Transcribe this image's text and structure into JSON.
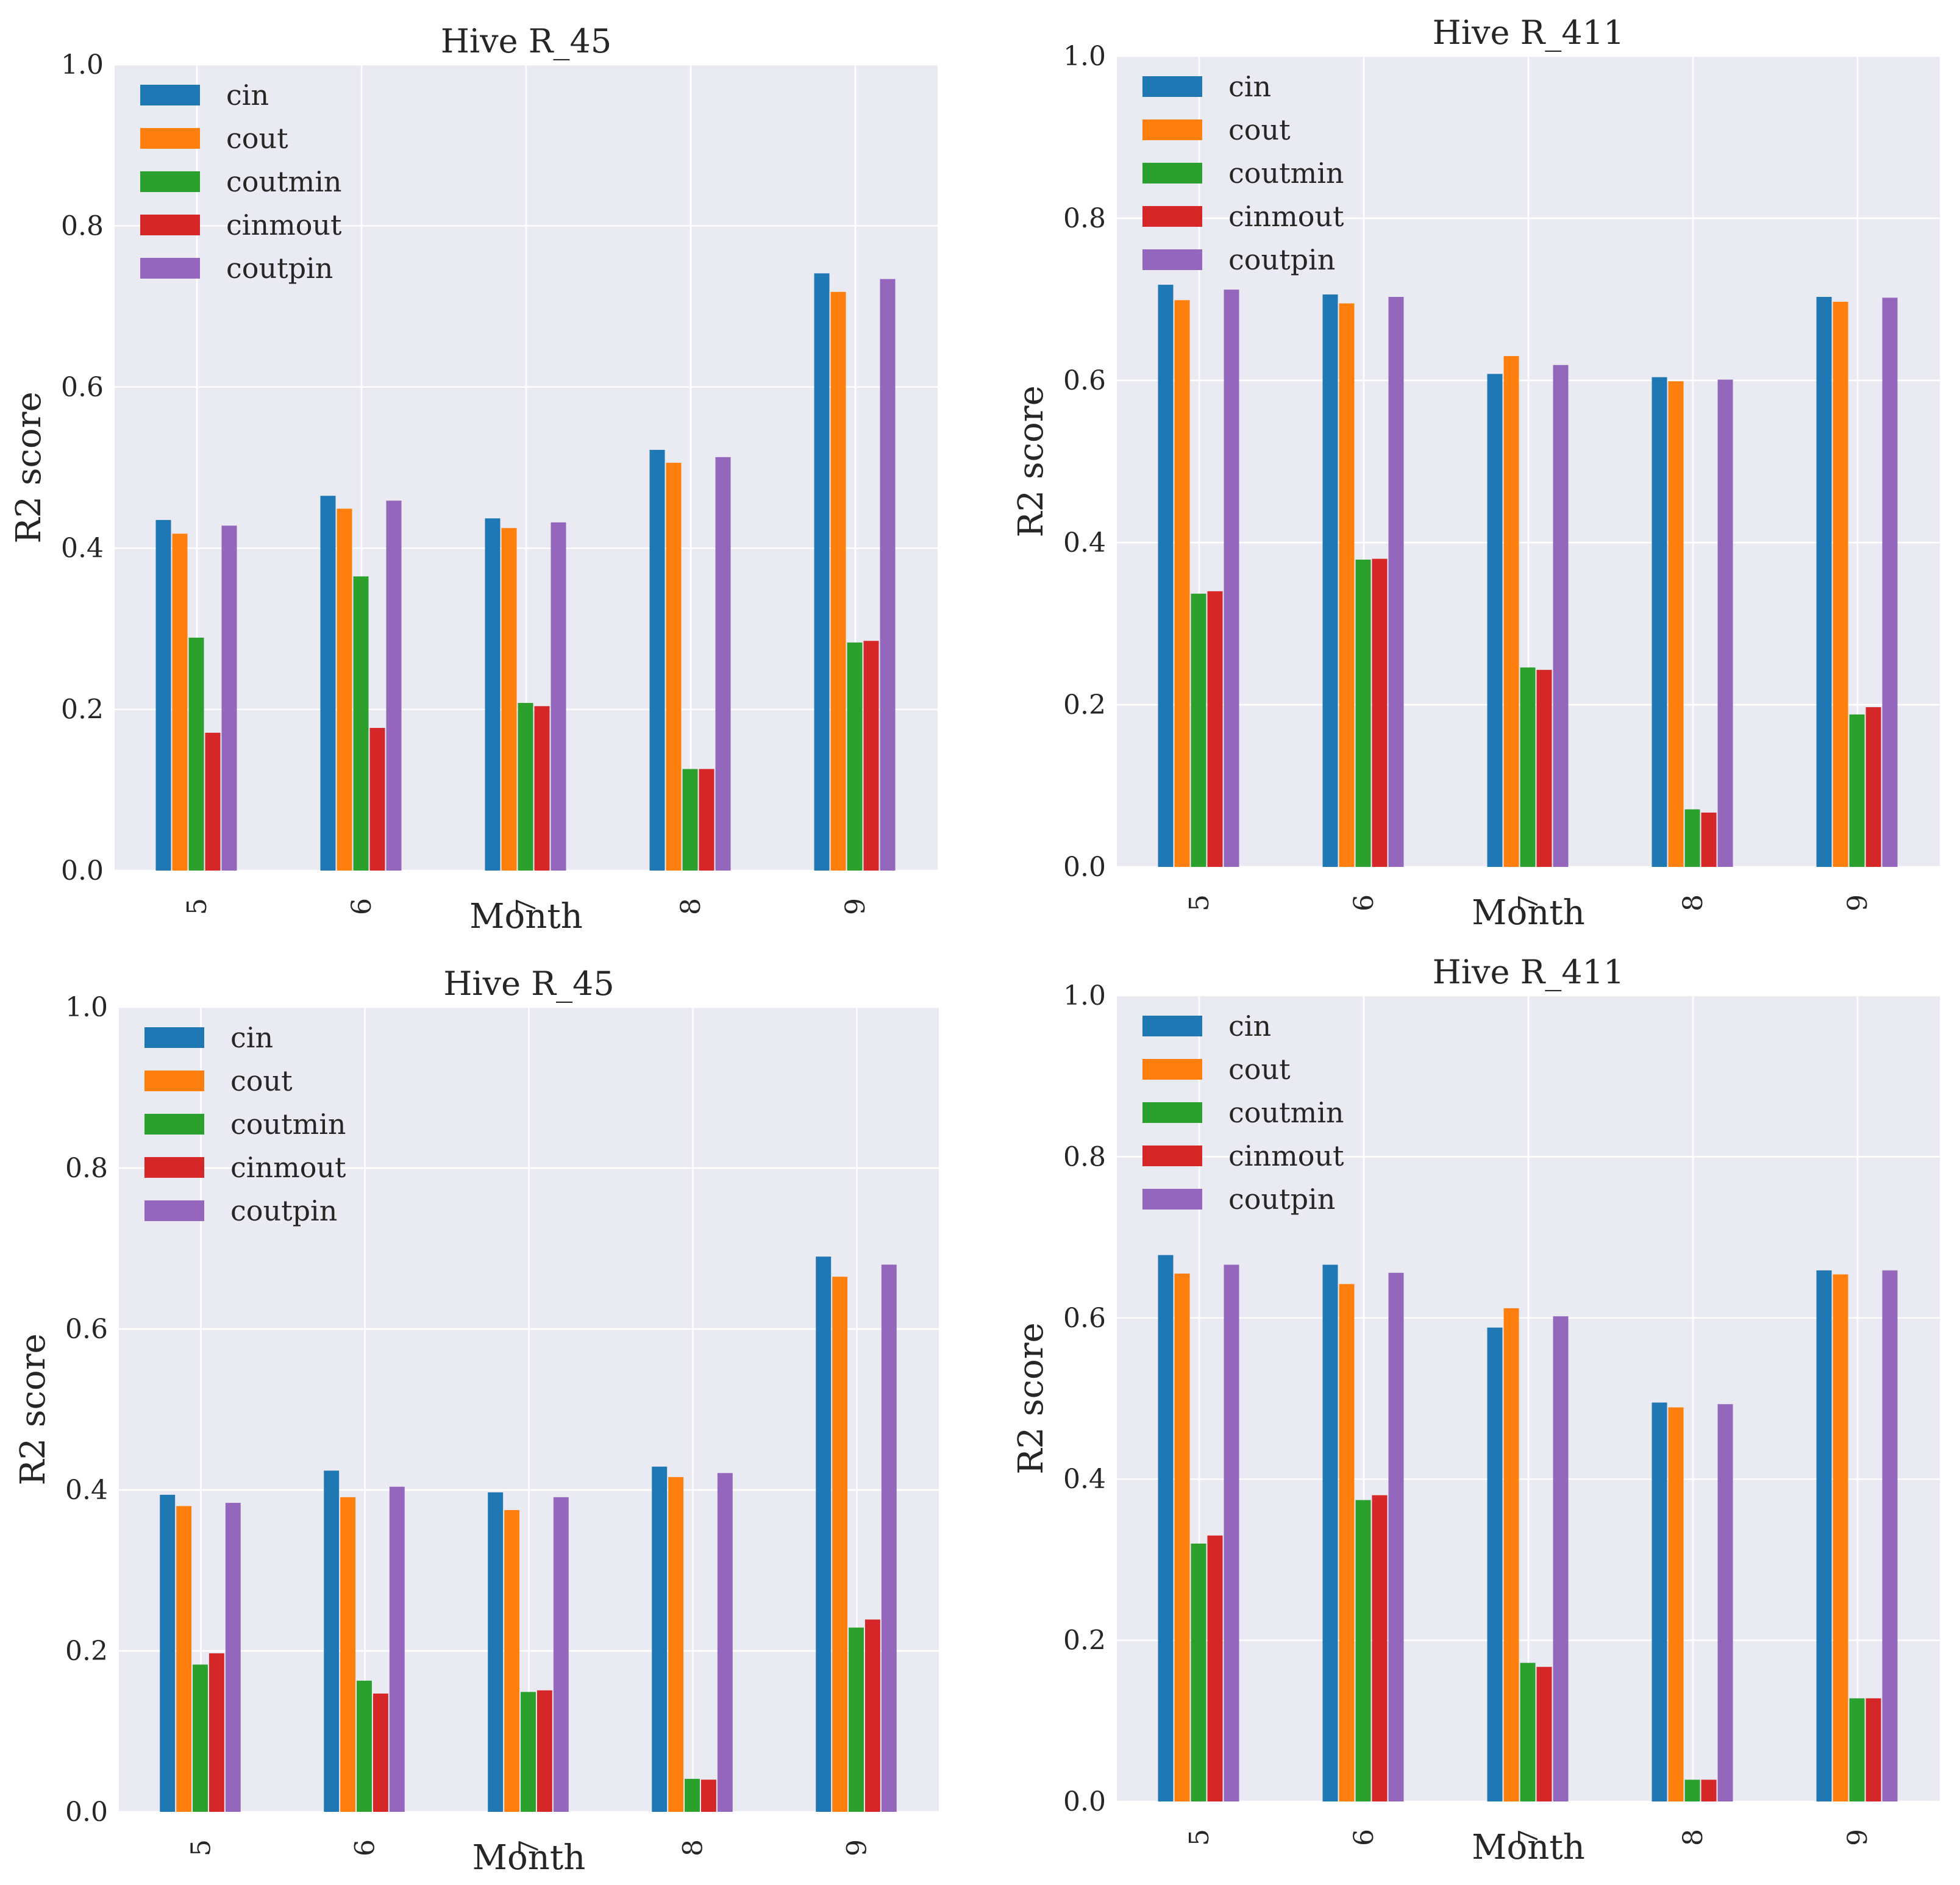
{
  "colors": {
    "cin": "#1f77b4",
    "cout": "#ff7f0e",
    "coutmin": "#2ca02c",
    "cinmout": "#d62728",
    "coutpin": "#9467bd",
    "plot_background": "#eaeaf2",
    "grid": "#ffffff"
  },
  "chart_data": [
    {
      "type": "bar",
      "title": "Hive R_45",
      "xlabel": "Month",
      "ylabel": "R2 score",
      "ylim": [
        0,
        1.0
      ],
      "yticks": [
        "0.0",
        "0.2",
        "0.4",
        "0.6",
        "0.8",
        "1.0"
      ],
      "grid": true,
      "legend_position": "upper-left",
      "categories": [
        "5",
        "6",
        "7",
        "8",
        "9"
      ],
      "series": [
        {
          "name": "cin",
          "values": [
            0.435,
            0.465,
            0.437,
            0.522,
            0.741
          ]
        },
        {
          "name": "cout",
          "values": [
            0.418,
            0.449,
            0.425,
            0.506,
            0.718
          ]
        },
        {
          "name": "coutmin",
          "values": [
            0.289,
            0.365,
            0.208,
            0.126,
            0.283
          ]
        },
        {
          "name": "cinmout",
          "values": [
            0.171,
            0.177,
            0.204,
            0.126,
            0.285
          ]
        },
        {
          "name": "coutpin",
          "values": [
            0.428,
            0.459,
            0.432,
            0.513,
            0.734
          ]
        }
      ]
    },
    {
      "type": "bar",
      "title": "Hive R_411",
      "xlabel": "Month",
      "ylabel": "R2 score",
      "ylim": [
        0,
        1.0
      ],
      "yticks": [
        "0.0",
        "0.2",
        "0.4",
        "0.6",
        "0.8",
        "1.0"
      ],
      "grid": true,
      "legend_position": "upper-left",
      "categories": [
        "5",
        "6",
        "7",
        "8",
        "9"
      ],
      "series": [
        {
          "name": "cin",
          "values": [
            0.718,
            0.706,
            0.608,
            0.604,
            0.703
          ]
        },
        {
          "name": "cout",
          "values": [
            0.699,
            0.695,
            0.63,
            0.599,
            0.697
          ]
        },
        {
          "name": "coutmin",
          "values": [
            0.337,
            0.379,
            0.246,
            0.071,
            0.188
          ]
        },
        {
          "name": "cinmout",
          "values": [
            0.34,
            0.38,
            0.243,
            0.067,
            0.197
          ]
        },
        {
          "name": "coutpin",
          "values": [
            0.712,
            0.703,
            0.619,
            0.601,
            0.702
          ]
        }
      ]
    },
    {
      "type": "bar",
      "title": "Hive R_45",
      "xlabel": "Month",
      "ylabel": "R2 score",
      "ylim": [
        0,
        1.0
      ],
      "yticks": [
        "0.0",
        "0.2",
        "0.4",
        "0.6",
        "0.8",
        "1.0"
      ],
      "grid": true,
      "legend_position": "upper-left",
      "categories": [
        "5",
        "6",
        "7",
        "8",
        "9"
      ],
      "series": [
        {
          "name": "cin",
          "values": [
            0.394,
            0.424,
            0.397,
            0.429,
            0.69
          ]
        },
        {
          "name": "cout",
          "values": [
            0.38,
            0.391,
            0.375,
            0.416,
            0.665
          ]
        },
        {
          "name": "coutmin",
          "values": [
            0.183,
            0.163,
            0.149,
            0.041,
            0.229
          ]
        },
        {
          "name": "cinmout",
          "values": [
            0.197,
            0.147,
            0.151,
            0.04,
            0.239
          ]
        },
        {
          "name": "coutpin",
          "values": [
            0.384,
            0.404,
            0.391,
            0.421,
            0.68
          ]
        }
      ]
    },
    {
      "type": "bar",
      "title": "Hive R_411",
      "xlabel": "Month",
      "ylabel": "R2 score",
      "ylim": [
        0,
        1.0
      ],
      "yticks": [
        "0.0",
        "0.2",
        "0.4",
        "0.6",
        "0.8",
        "1.0"
      ],
      "grid": true,
      "legend_position": "upper-left",
      "categories": [
        "5",
        "6",
        "7",
        "8",
        "9"
      ],
      "series": [
        {
          "name": "cin",
          "values": [
            0.678,
            0.666,
            0.588,
            0.495,
            0.659
          ]
        },
        {
          "name": "cout",
          "values": [
            0.655,
            0.642,
            0.612,
            0.489,
            0.654
          ]
        },
        {
          "name": "coutmin",
          "values": [
            0.32,
            0.374,
            0.172,
            0.027,
            0.128
          ]
        },
        {
          "name": "cinmout",
          "values": [
            0.33,
            0.38,
            0.167,
            0.027,
            0.128
          ]
        },
        {
          "name": "coutpin",
          "values": [
            0.666,
            0.656,
            0.602,
            0.493,
            0.659
          ]
        }
      ]
    }
  ]
}
